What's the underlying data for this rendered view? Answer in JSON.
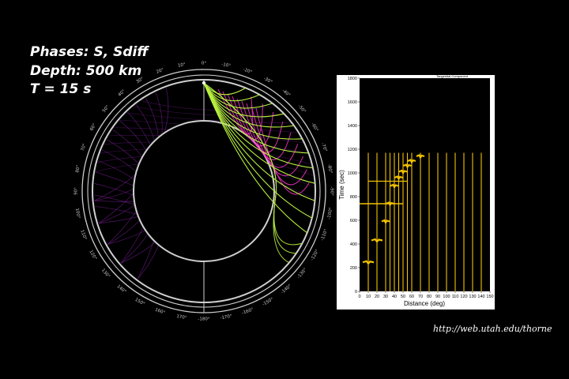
{
  "header": {
    "phases": "Phases: S, Sdiff",
    "depth": "Depth: 500 km",
    "period": "T = 15 s"
  },
  "credit_url": "http://web.utah.edu/thorne",
  "globe": {
    "angle_labels_right": [
      "0°",
      "-10°",
      "-20°",
      "-30°",
      "-40°",
      "-50°",
      "-60°",
      "-70°",
      "-80°",
      "-90°",
      "-100°",
      "-110°",
      "-120°",
      "-130°",
      "-140°",
      "-150°",
      "-160°",
      "-170°",
      "-180°"
    ],
    "angle_labels_left": [
      "10°",
      "20°",
      "30°",
      "40°",
      "50°",
      "60°",
      "70°",
      "80°",
      "90°",
      "100°",
      "110°",
      "120°",
      "130°",
      "140°",
      "150°",
      "160°",
      "170°"
    ],
    "colors": {
      "ray": "#b8f040",
      "wavefront": "#ff33cc",
      "reflections": "#8822aa",
      "ring": "#cfcfcf"
    }
  },
  "chart_data": {
    "type": "line",
    "title": "Tangential Component",
    "xlabel": "Distance (deg)",
    "ylabel": "Time (sec)",
    "xlim": [
      0,
      150
    ],
    "ylim": [
      0,
      1800
    ],
    "x_ticks": [
      0,
      10,
      20,
      30,
      40,
      50,
      60,
      70,
      80,
      90,
      100,
      110,
      120,
      130,
      140,
      150
    ],
    "y_ticks": [
      0,
      200,
      400,
      600,
      800,
      1000,
      1200,
      1400,
      1600,
      1800
    ],
    "trace_distances": [
      10,
      20,
      30,
      35,
      40,
      45,
      50,
      55,
      60,
      70,
      80,
      90,
      100,
      110,
      120,
      130,
      140
    ],
    "trace_top_time": 1170,
    "arrivals": [
      {
        "distance": 10,
        "time": 245
      },
      {
        "distance": 20,
        "time": 430
      },
      {
        "distance": 30,
        "time": 590
      },
      {
        "distance": 35,
        "time": 740
      },
      {
        "distance": 40,
        "time": 890
      },
      {
        "distance": 45,
        "time": 960
      },
      {
        "distance": 50,
        "time": 1010
      },
      {
        "distance": 55,
        "time": 1060
      },
      {
        "distance": 60,
        "time": 1100
      },
      {
        "distance": 70,
        "time": 1140
      }
    ],
    "trace_color": "#f2c200"
  }
}
